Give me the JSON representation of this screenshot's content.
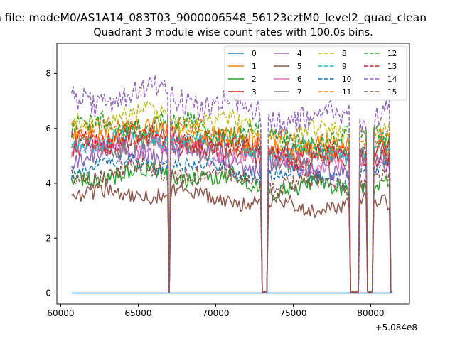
{
  "chart_data": {
    "type": "line",
    "suptitle": "n file: modeM0/AS1A14_083T03_9000006548_56123cztM0_level2_quad_clean",
    "title": "Quadrant 3 module wise count rates with 100.0s bins.",
    "xlabel": "",
    "ylabel": "",
    "x_offset_label": "+5.084e8",
    "xlim": [
      59750,
      82500
    ],
    "ylim": [
      -0.4,
      9.1
    ],
    "x_ticks": [
      60000,
      65000,
      70000,
      75000,
      80000
    ],
    "x_tick_labels": [
      "60000",
      "65000",
      "70000",
      "75000",
      "80000"
    ],
    "y_ticks": [
      0,
      2,
      4,
      6,
      8
    ],
    "y_tick_labels": [
      "0",
      "2",
      "4",
      "6",
      "8"
    ],
    "x_range": [
      60700,
      81400
    ],
    "bin_s": 100,
    "gaps": [
      [
        66950,
        67050
      ],
      [
        72950,
        73350
      ],
      [
        78700,
        79200
      ],
      [
        79800,
        80100
      ],
      [
        81300,
        81400
      ]
    ],
    "legend": {
      "placement": "top-right",
      "columns": 4
    },
    "series": [
      {
        "name": "0",
        "color": "#1f77b4",
        "dash": "solid",
        "level": 0.0,
        "amp": 0.0
      },
      {
        "name": "1",
        "color": "#ff7f0e",
        "dash": "solid",
        "level": 5.6,
        "amp": 0.5
      },
      {
        "name": "2",
        "color": "#2ca02c",
        "dash": "solid",
        "level": 4.1,
        "amp": 0.4
      },
      {
        "name": "3",
        "color": "#d62728",
        "dash": "solid",
        "level": 5.3,
        "amp": 0.45
      },
      {
        "name": "4",
        "color": "#9467bd",
        "dash": "solid",
        "level": 4.9,
        "amp": 0.45
      },
      {
        "name": "5",
        "color": "#8c564b",
        "dash": "solid",
        "level": 3.4,
        "amp": 0.35
      },
      {
        "name": "6",
        "color": "#e377c2",
        "dash": "solid",
        "level": 5.0,
        "amp": 0.45
      },
      {
        "name": "7",
        "color": "#7f7f7f",
        "dash": "solid",
        "level": 5.2,
        "amp": 0.45
      },
      {
        "name": "8",
        "color": "#bcbd22",
        "dash": "dashed",
        "level": 6.1,
        "amp": 0.45
      },
      {
        "name": "9",
        "color": "#17becf",
        "dash": "dashed",
        "level": 5.4,
        "amp": 0.4
      },
      {
        "name": "10",
        "color": "#1f77b4",
        "dash": "dashed",
        "level": 4.5,
        "amp": 0.35
      },
      {
        "name": "11",
        "color": "#ff7f0e",
        "dash": "dashed",
        "level": 5.7,
        "amp": 0.45
      },
      {
        "name": "12",
        "color": "#2ca02c",
        "dash": "dashed",
        "level": 5.9,
        "amp": 0.45
      },
      {
        "name": "13",
        "color": "#d62728",
        "dash": "dashed",
        "level": 5.3,
        "amp": 0.45
      },
      {
        "name": "14",
        "color": "#9467bd",
        "dash": "dashed",
        "level": 6.8,
        "amp": 0.6
      },
      {
        "name": "15",
        "color": "#8c564b",
        "dash": "dashed",
        "level": 4.2,
        "amp": 0.4
      }
    ]
  }
}
